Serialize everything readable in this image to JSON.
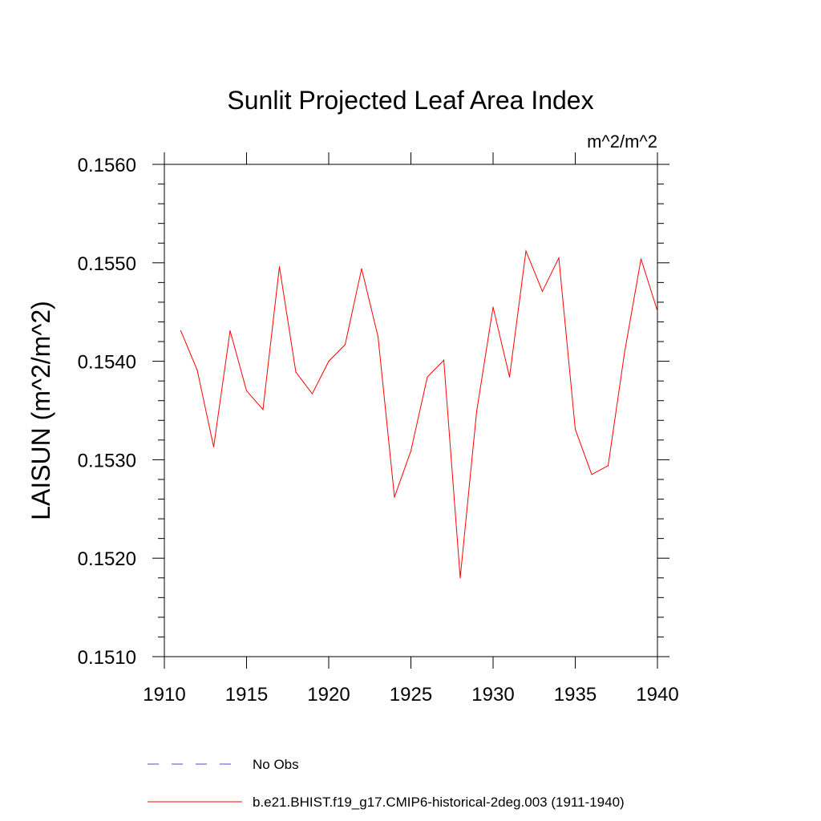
{
  "chart_data": {
    "type": "line",
    "title": "Sunlit Projected Leaf Area Index",
    "units": "m^2/m^2",
    "ylabel": "LAISUN  (m^2/m^2)",
    "xlabel": "",
    "xlim": [
      1910,
      1940
    ],
    "ylim": [
      0.151,
      0.156
    ],
    "x_ticks": [
      1910,
      1915,
      1920,
      1925,
      1930,
      1935,
      1940
    ],
    "x_tick_labels": [
      "1910",
      "1915",
      "1920",
      "1925",
      "1930",
      "1935",
      "1940"
    ],
    "y_ticks": [
      0.151,
      0.152,
      0.153,
      0.154,
      0.155,
      0.156
    ],
    "y_tick_labels": [
      "0.1510",
      "0.1520",
      "0.1530",
      "0.1540",
      "0.1550",
      "0.1560"
    ],
    "grid": false,
    "legend_position": "bottom",
    "series": [
      {
        "name": "b.e21.BHIST.f19_g17.CMIP6-historical-2deg.003 (1911-1940)",
        "color": "#ff0000",
        "style": "solid",
        "x": [
          1911,
          1912,
          1913,
          1914,
          1915,
          1916,
          1917,
          1918,
          1919,
          1920,
          1921,
          1922,
          1923,
          1924,
          1925,
          1926,
          1927,
          1928,
          1929,
          1930,
          1931,
          1932,
          1933,
          1934,
          1935,
          1936,
          1937,
          1938,
          1939,
          1940
        ],
        "values": [
          0.15431,
          0.15391,
          0.15313,
          0.15431,
          0.1537,
          0.15351,
          0.15496,
          0.15389,
          0.15367,
          0.154,
          0.15417,
          0.15494,
          0.15425,
          0.15262,
          0.15309,
          0.15384,
          0.15401,
          0.1518,
          0.15349,
          0.15455,
          0.15384,
          0.15512,
          0.15471,
          0.15505,
          0.15331,
          0.15285,
          0.15294,
          0.15409,
          0.15504,
          0.15451
        ]
      }
    ],
    "legend": [
      {
        "label": "No Obs",
        "color": "#4b4bd8",
        "style": "dashed"
      },
      {
        "label": "b.e21.BHIST.f19_g17.CMIP6-historical-2deg.003 (1911-1940)",
        "color": "#ff0000",
        "style": "solid"
      }
    ]
  }
}
